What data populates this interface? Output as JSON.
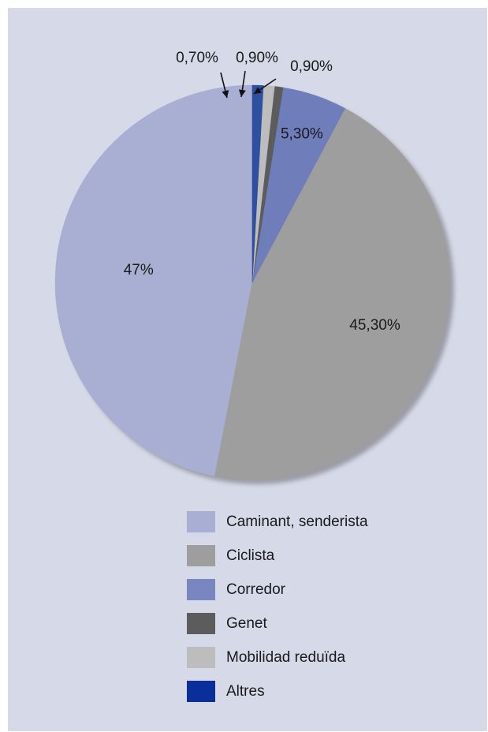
{
  "chart_data": {
    "type": "pie",
    "title": "",
    "categories": [
      "Caminant, senderista",
      "Ciclista",
      "Corredor",
      "Genet",
      "Mobilidad reduïda",
      "Altres"
    ],
    "values": [
      47,
      45.3,
      5.3,
      0.7,
      0.9,
      0.9
    ],
    "value_labels": [
      "47%",
      "45,30%",
      "5,30%",
      "0,70%",
      "0,90%",
      "0,90%"
    ],
    "colors": [
      "#a8afd2",
      "#9e9e9e",
      "#6f7dba",
      "#5c5c5c",
      "#bdbdbd",
      "#2f4fa0"
    ],
    "legend_colors": [
      "#a8afd2",
      "#9e9e9e",
      "#7a86c0",
      "#5c5c5c",
      "#bdbdbd",
      "#0a2e9a"
    ],
    "legend_position": "bottom"
  }
}
